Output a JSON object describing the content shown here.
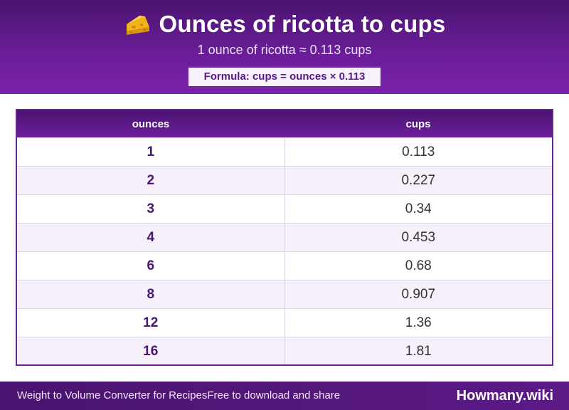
{
  "header": {
    "icon": "cheese-icon",
    "title": "Ounces of ricotta to cups",
    "subtitle": "1 ounce of ricotta ≈ 0.113 cups",
    "formula": "Formula: cups = ounces × 0.113"
  },
  "table": {
    "columns": [
      "ounces",
      "cups"
    ],
    "rows": [
      {
        "ounces": "1",
        "cups": "0.113"
      },
      {
        "ounces": "2",
        "cups": "0.227"
      },
      {
        "ounces": "3",
        "cups": "0.34"
      },
      {
        "ounces": "4",
        "cups": "0.453"
      },
      {
        "ounces": "6",
        "cups": "0.68"
      },
      {
        "ounces": "8",
        "cups": "0.907"
      },
      {
        "ounces": "12",
        "cups": "1.36"
      },
      {
        "ounces": "16",
        "cups": "1.81"
      }
    ]
  },
  "footer": {
    "left_text": "Weight to Volume Converter for Recipes",
    "middle_text": "Free to download and share",
    "brand": "Howmany.wiki"
  },
  "colors": {
    "brand_purple": "#6a1d97",
    "dark_purple": "#4a1470",
    "row_alt": "#f5f0fa"
  }
}
